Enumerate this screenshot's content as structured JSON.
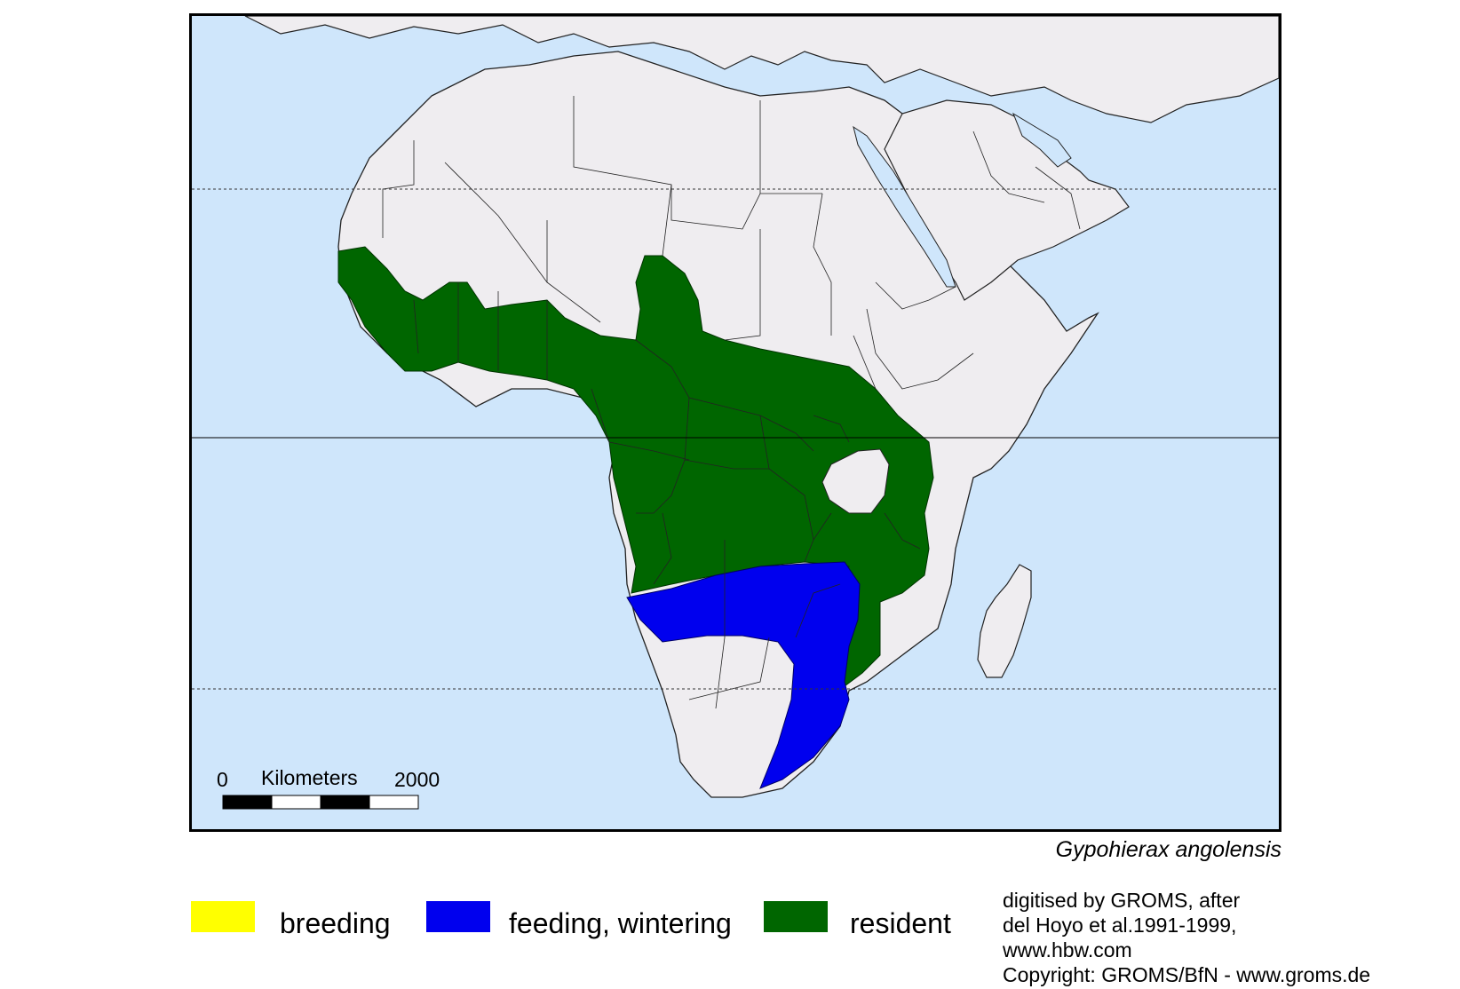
{
  "map": {
    "species_name": "Gypohierax angolensis",
    "colors": {
      "ocean": "#cfe6fb",
      "land": "#efedf0",
      "border": "#222222",
      "breeding": "#ffff00",
      "feeding_wintering": "#0000ee",
      "resident": "#006600"
    },
    "scale_bar": {
      "start_label": "0",
      "unit_label": "Kilometers",
      "end_label": "2000"
    }
  },
  "legend": {
    "items": [
      {
        "label": "breeding",
        "color": "#ffff00"
      },
      {
        "label": "feeding, wintering",
        "color": "#0000ee"
      },
      {
        "label": "resident",
        "color": "#006600"
      }
    ]
  },
  "credits": {
    "lines": [
      "digitised by GROMS, after",
      "del Hoyo et al.1991-1999,",
      "www.hbw.com",
      "Copyright: GROMS/BfN - www.groms.de"
    ]
  }
}
